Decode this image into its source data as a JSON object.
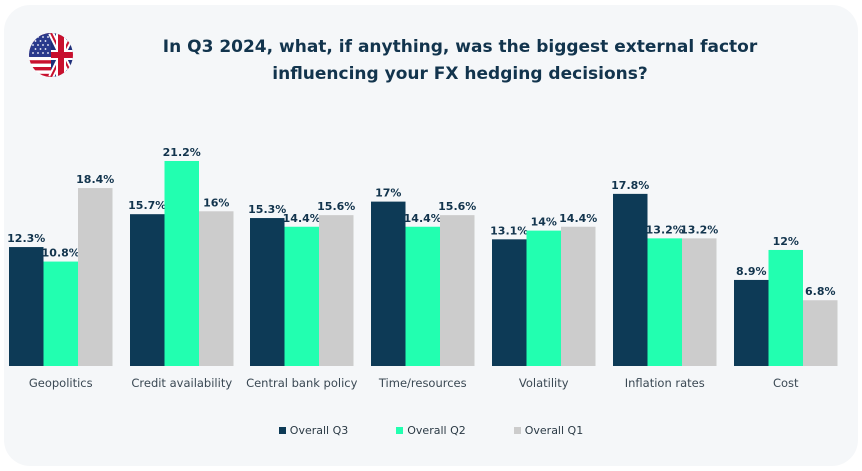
{
  "header": {
    "title_line1": "In Q3 2024, what, if anything, was the biggest external factor",
    "title_line2": "influencing your FX hedging decisions?",
    "flag_icon": "us-uk-flag-icon"
  },
  "chart_data": {
    "type": "bar",
    "title": "In Q3 2024, what, if anything, was the biggest external factor influencing your FX hedging decisions?",
    "xlabel": "",
    "ylabel": "",
    "ylim": [
      0,
      22
    ],
    "grid": false,
    "legend_position": "bottom",
    "categories": [
      "Geopolitics",
      "Credit availability",
      "Central bank policy",
      "Time/resources",
      "Volatility",
      "Inflation rates",
      "Cost"
    ],
    "series": [
      {
        "name": "Overall Q3",
        "color": "#0d3a56",
        "values": [
          12.3,
          15.7,
          15.3,
          17,
          13.1,
          17.8,
          8.9
        ],
        "labels": [
          "12.3%",
          "15.7%",
          "15.3%",
          "17%",
          "13.1%",
          "17.8%",
          "8.9%"
        ]
      },
      {
        "name": "Overall Q2",
        "color": "#22ffb0",
        "values": [
          10.8,
          21.2,
          14.4,
          14.4,
          14,
          13.2,
          12
        ],
        "labels": [
          "10.8%",
          "21.2%",
          "14.4%",
          "14.4%",
          "14%",
          "13.2%",
          "12%"
        ]
      },
      {
        "name": "Overall Q1",
        "color": "#cccccc",
        "values": [
          18.4,
          16,
          15.6,
          15.6,
          14.4,
          13.2,
          6.8
        ],
        "labels": [
          "18.4%",
          "16%",
          "15.6%",
          "15.6%",
          "14.4%",
          "13.2%",
          "6.8%"
        ]
      }
    ]
  }
}
